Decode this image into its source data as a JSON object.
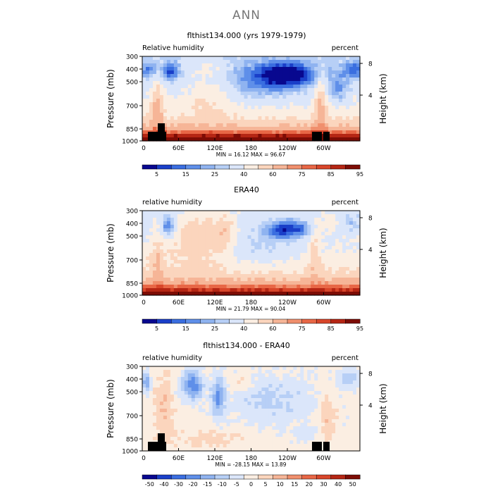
{
  "figure": {
    "title": "ANN"
  },
  "chart_data": [
    {
      "type": "heatmap",
      "title": "flthist134.000 (yrs 1979-1979)",
      "left_label": "Relative humidity",
      "right_label": "percent",
      "ylabel": "Pressure (mb)",
      "y2label": "Height (km)",
      "yticks": [
        "300",
        "400",
        "500",
        "700",
        "850",
        "1000"
      ],
      "y2ticks": [
        "8",
        "4"
      ],
      "xticks": [
        "0",
        "60E",
        "120E",
        "180",
        "120W",
        "60W"
      ],
      "stats": "MIN =   16.12   MAX =   96.67",
      "colorbar": {
        "colors": [
          "#08088f",
          "#1a3fc9",
          "#3a6ee0",
          "#5f8fe9",
          "#8fb3f0",
          "#b7cff6",
          "#dbe6fa",
          "#fbeee2",
          "#fbd5bd",
          "#f6b597",
          "#f08f6d",
          "#e86746",
          "#d8462a",
          "#b52614",
          "#7d0c05"
        ],
        "labels": [
          "5",
          "15",
          "25",
          "40",
          "60",
          "75",
          "85",
          "95"
        ]
      },
      "grid": false
    },
    {
      "type": "heatmap",
      "title": "ERA40",
      "left_label": "relative humidity",
      "right_label": "percent",
      "ylabel": "Pressure (mb)",
      "y2label": "Height (km)",
      "yticks": [
        "300",
        "400",
        "500",
        "700",
        "850",
        "1000"
      ],
      "y2ticks": [
        "8",
        "4"
      ],
      "xticks": [
        "0",
        "60E",
        "120E",
        "180",
        "120W",
        "60W"
      ],
      "stats": "MIN =   21.79   MAX =   90.04",
      "colorbar": {
        "colors": [
          "#08088f",
          "#1a3fc9",
          "#3a6ee0",
          "#5f8fe9",
          "#8fb3f0",
          "#b7cff6",
          "#dbe6fa",
          "#fbeee2",
          "#fbd5bd",
          "#f6b597",
          "#f08f6d",
          "#e86746",
          "#d8462a",
          "#b52614",
          "#7d0c05"
        ],
        "labels": [
          "5",
          "15",
          "25",
          "40",
          "60",
          "75",
          "85",
          "95"
        ]
      },
      "grid": false
    },
    {
      "type": "heatmap",
      "title": "flthist134.000 - ERA40",
      "left_label": "relative humidity",
      "right_label": "percent",
      "ylabel": "Pressure (mb)",
      "y2label": "Height (km)",
      "yticks": [
        "300",
        "400",
        "500",
        "700",
        "850",
        "1000"
      ],
      "y2ticks": [
        "8",
        "4"
      ],
      "xticks": [
        "0",
        "60E",
        "120E",
        "180",
        "120W",
        "60W"
      ],
      "stats": "MIN =  -28.15   MAX =   13.89",
      "colorbar": {
        "colors": [
          "#08088f",
          "#1a3fc9",
          "#3a6ee0",
          "#5f8fe9",
          "#8fb3f0",
          "#b7cff6",
          "#dbe6fa",
          "#fbeee2",
          "#fbd5bd",
          "#f6b597",
          "#f08f6d",
          "#e86746",
          "#d8462a",
          "#b52614",
          "#7d0c05"
        ],
        "labels": [
          "-50",
          "-40",
          "-30",
          "-20",
          "-15",
          "-10",
          "-5",
          "0",
          "5",
          "10",
          "15",
          "20",
          "30",
          "40",
          "50"
        ]
      },
      "grid": false
    }
  ]
}
